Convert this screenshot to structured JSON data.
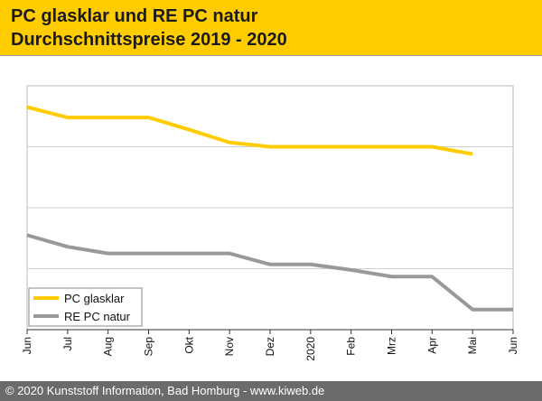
{
  "header": {
    "title_line1": "PC glasklar und RE PC natur",
    "title_line2": "Durchschnittspreise 2019 - 2020"
  },
  "footer": {
    "text": "© 2020 Kunststoff Information, Bad Homburg - www.kiweb.de"
  },
  "colors": {
    "header_bg": "#ffcc00",
    "footer_bg": "#6b6b6b",
    "series_pc_glasklar": "#ffcc00",
    "series_re_pc_natur": "#999999"
  },
  "chart_data": {
    "type": "line",
    "title": "PC glasklar und RE PC natur Durchschnittspreise 2019 - 2020",
    "xlabel": "",
    "ylabel": "",
    "x_tick_labels": [
      "Jun",
      "Jul",
      "Aug",
      "Sep",
      "Okt",
      "Nov",
      "Dez",
      "2020",
      "Feb",
      "Mrz",
      "Apr",
      "Mai",
      "Jun"
    ],
    "ylim": [
      0,
      4
    ],
    "y_gridlines": [
      1,
      2,
      3
    ],
    "y_tick_labels_shown": false,
    "grid": true,
    "legend_position": "bottom-left",
    "series": [
      {
        "name": "PC glasklar",
        "color": "#ffcc00",
        "x": [
          0,
          1,
          2,
          3,
          4,
          5,
          6,
          7,
          8,
          9,
          10,
          11
        ],
        "values": [
          3.65,
          3.48,
          3.48,
          3.48,
          3.28,
          3.07,
          3.0,
          3.0,
          3.0,
          3.0,
          3.0,
          2.88
        ]
      },
      {
        "name": "RE PC natur",
        "color": "#999999",
        "x": [
          0,
          1,
          2,
          3,
          4,
          5,
          6,
          7,
          8,
          9,
          10,
          11,
          12
        ],
        "values": [
          1.55,
          1.36,
          1.25,
          1.25,
          1.25,
          1.25,
          1.07,
          1.07,
          0.98,
          0.87,
          0.87,
          0.33,
          0.33
        ]
      }
    ]
  }
}
